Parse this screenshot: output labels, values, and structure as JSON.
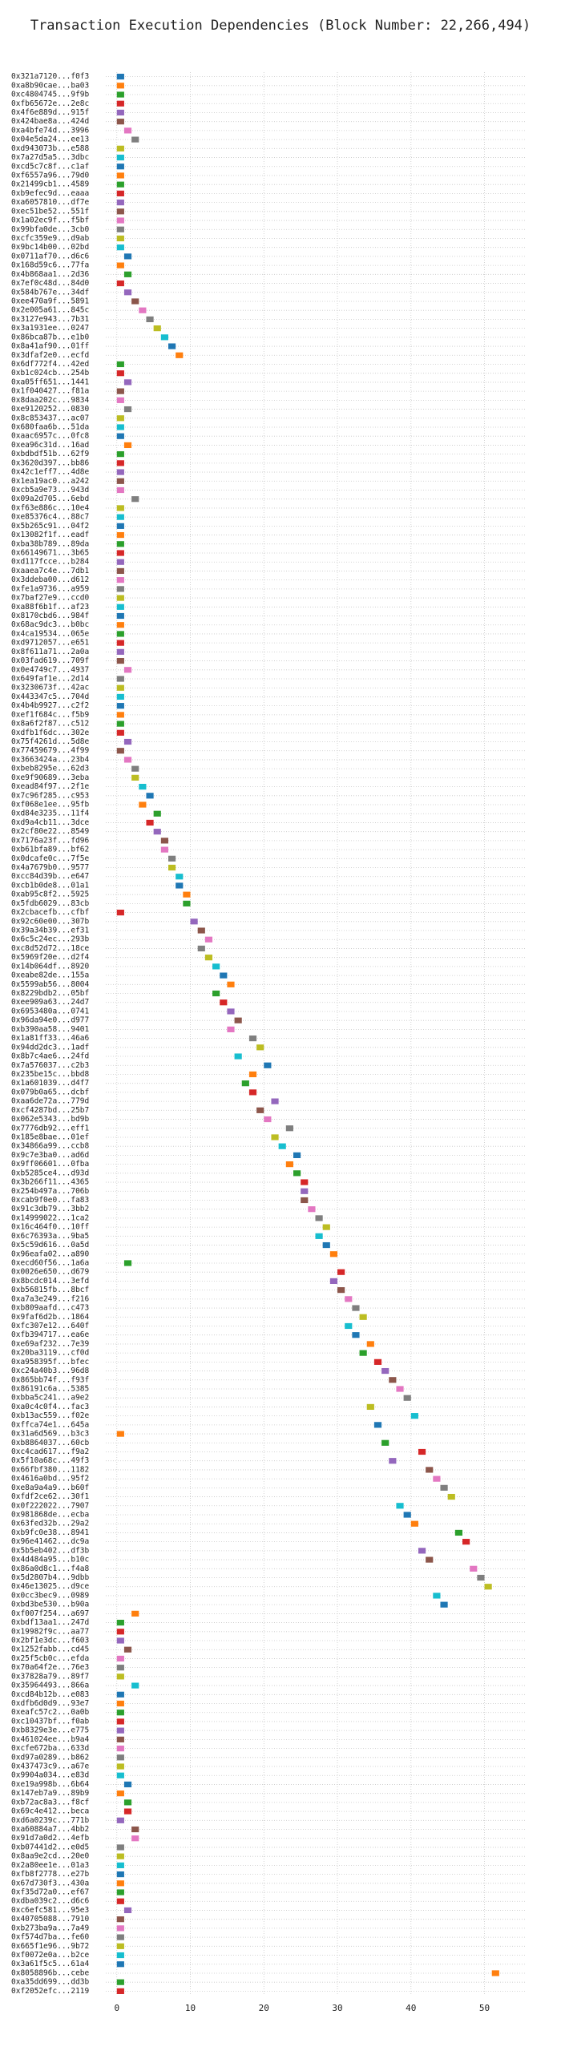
{
  "chart_data": {
    "type": "timeline",
    "title": "Transaction Execution Dependencies (Block Number: 22,266,494)",
    "categories": [
      "0x321a7120...f0f3",
      "0xa8b90cae...ba03",
      "0xc4804745...9f9b",
      "0xfb65672e...2e8c",
      "0x4f6e889d...915f",
      "0x424bae8a...424d",
      "0xa4bfe74d...3996",
      "0x04e5da24...ee13",
      "0xd943073b...e588",
      "0x7a27d5a5...3dbc",
      "0xcd5c7c8f...c1af",
      "0xf6557a96...79d0",
      "0x21499cb1...4589",
      "0xb9efec9d...eaaa",
      "0xa6057810...df7e",
      "0xec51be52...551f",
      "0x1a02ec9f...f5bf",
      "0x99bfa0de...3cb0",
      "0xcfc359e9...d9ab",
      "0x9bc14b00...02bd",
      "0x0711af70...d6c6",
      "0x168d59c6...77fa",
      "0x4b868aa1...2d36",
      "0x7ef0c48d...84d0",
      "0x584b767e...34df",
      "0xee470a9f...5891",
      "0x2e005a61...845c",
      "0x3127e943...7b31",
      "0x3a1931ee...0247",
      "0x86bca87b...e1b0",
      "0x8a41af90...01ff",
      "0x3dfaf2e0...ecfd",
      "0x6df772f4...42ed",
      "0xb1c024cb...254b",
      "0xa05ff651...1441",
      "0x1f040427...f81a",
      "0x8daa202c...9834",
      "0xe9120252...0830",
      "0x8c853437...ac07",
      "0x680faa6b...51da",
      "0xaac6957c...0fc8",
      "0xea96c31d...16ad",
      "0xbdbdf51b...62f9",
      "0x3620d397...bb86",
      "0x42c1eff7...4d8e",
      "0x1ea19ac0...a242",
      "0xcb5a9e73...943d",
      "0x09a2d705...6ebd",
      "0xf63e886c...10e4",
      "0xe85376c4...88c7",
      "0x5b265c91...04f2",
      "0x13082f1f...eadf",
      "0xba38b789...89da",
      "0x66149671...3b65",
      "0xd117fcce...b284",
      "0xaaea7c4e...7db1",
      "0x3ddeba00...d612",
      "0xfe1a9736...a959",
      "0x7baf27e9...ccd0",
      "0xa88f6b1f...af23",
      "0x8170cbd6...984f",
      "0x68ac9dc3...b0bc",
      "0x4ca19534...065e",
      "0xd9712057...e651",
      "0x8f611a71...2a0a",
      "0x03fad619...709f",
      "0x0e4749c7...4937",
      "0x649faf1e...2d14",
      "0x3230673f...42ac",
      "0x443347c5...704d",
      "0x4b4b9927...c2f2",
      "0xef1f684c...f5b9",
      "0x8a6f2f87...c512",
      "0xdfb1f6dc...302e",
      "0x75f4261d...5d8e",
      "0x77459679...4f99",
      "0x3663424a...23b4",
      "0xbeb8295e...62d3",
      "0xe9f90689...3eba",
      "0xead84f97...2f1e",
      "0x7c96f285...c953",
      "0xf068e1ee...95fb",
      "0xd84e3235...11f4",
      "0xd9a4cb11...3dce",
      "0x2cf80e22...8549",
      "0x7176a23f...fd96",
      "0xb61bfa89...bf62",
      "0x0dcafe0c...7f5e",
      "0x4a7679b0...9577",
      "0xcc84d39b...e647",
      "0xcb1b0de8...01a1",
      "0xab95c8f2...5925",
      "0x5fdb6029...83cb",
      "0x2cbacefb...cfbf",
      "0x92c60e00...307b",
      "0x39a34b39...ef31",
      "0x6c5c24ec...293b",
      "0xc8d52d72...18ce",
      "0x5969f20e...d2f4",
      "0x14b064df...8920",
      "0xeabe82de...155a",
      "0x5599ab56...8004",
      "0x8229bdb2...05bf",
      "0xee909a63...24d7",
      "0x6953480a...0741",
      "0x96da94e0...d977",
      "0xb390aa58...9401",
      "0x1a81ff33...46a6",
      "0x94dd2dc3...1adf",
      "0x8b7c4ae6...24fd",
      "0x7a576037...c2b3",
      "0x235be15c...bbd8",
      "0x1a601039...d4f7",
      "0x079b0a65...dcbf",
      "0xaa6de72a...779d",
      "0xcf4287bd...25b7",
      "0x062e5343...bd9b",
      "0x7776db92...eff1",
      "0x185e8bae...01ef",
      "0x34866a99...ccb8",
      "0x9c7e3ba0...ad6d",
      "0x9ff06601...0fba",
      "0xb5285ce4...d93d",
      "0x3b266f11...4365",
      "0x254b497a...706b",
      "0xcab9f0e0...fa83",
      "0x91c3db79...3bb2",
      "0x14999022...1ca2",
      "0x16c464f0...10ff",
      "0x6c76393a...9ba5",
      "0x5c59d616...0a5d",
      "0x96eafa02...a890",
      "0xecd60f56...1a6a",
      "0x0026e650...d679",
      "0x8bcdc014...3efd",
      "0xb56815fb...8bcf",
      "0xa7a3e249...f216",
      "0xb809aafd...c473",
      "0x9faf6d2b...1864",
      "0xfc307e12...640f",
      "0xfb394717...ea6e",
      "0xe69af232...7e39",
      "0x20ba3119...cf0d",
      "0xa958395f...bfec",
      "0xc24a40b3...96d8",
      "0x865bb74f...f93f",
      "0x86191c6a...5385",
      "0xbba5c241...a9e2",
      "0xa0c4c0f4...fac3",
      "0xb13ac559...f02e",
      "0xffca74e1...645a",
      "0x31a6d569...b3c3",
      "0xb8864037...60cb",
      "0xc4cad617...f9a2",
      "0x5f10a68c...49f3",
      "0x66fbf380...1182",
      "0x4616a0bd...95f2",
      "0xe8a9a4a9...b60f",
      "0xfdf2ce62...30f1",
      "0x0f222022...7907",
      "0x981868de...ecba",
      "0x63fed32b...29a2",
      "0xb9fc0e38...8941",
      "0x96e41462...dc9a",
      "0x5b5eb402...df3b",
      "0x4d484a95...b10c",
      "0x86a0d8c1...f4a8",
      "0x5d2807b4...9dbb",
      "0x46e13025...d9ce",
      "0x0cc3bec9...0989",
      "0xbd3be530...b90a",
      "0xf007f254...a697",
      "0xbdf13aa1...247d",
      "0x19982f9c...aa77",
      "0x2bf1e3dc...f603",
      "0x1252fabb...cd45",
      "0x25f5cb0c...efda",
      "0x70a64f2e...76e3",
      "0x37828a79...89f7",
      "0x35964493...866a",
      "0xcd84b12b...e083",
      "0xdfb6d0d9...93e7",
      "0xeafc57c2...0a0b",
      "0xc10437bf...f0ab",
      "0xb8329e3e...e775",
      "0x461024ee...b9a4",
      "0xcfe672ba...633d",
      "0xd97a0289...b862",
      "0x437473c9...a67e",
      "0x9904a034...e83d",
      "0xe19a998b...6b64",
      "0x147eb7a9...89b9",
      "0xb72ac8a3...f8cf",
      "0x69c4e412...beca",
      "0xd6a0239c...771b",
      "0xa60884a7...4bb2",
      "0x91d7a0d2...4efb",
      "0xb07441d2...e0d5",
      "0x8aa9e2cd...20e0",
      "0x2a80ee1e...01a3",
      "0xfb8f2778...e27b",
      "0x67d730f3...430a",
      "0xf35d72a0...ef67",
      "0xdba039c2...d6c6",
      "0xc6efc581...95e3",
      "0x40705088...7910",
      "0xb273ba9a...7a49",
      "0xf574d7ba...fe60",
      "0x665f1e96...9b72",
      "0xf0072e0a...b2ce",
      "0x3a61f5c5...61a4",
      "0x8058896b...cebe",
      "0xa35dd699...dd3b",
      "0xf2052efc...2119"
    ],
    "values": [
      0,
      0,
      0,
      0,
      0,
      0,
      1,
      2,
      0,
      0,
      0,
      0,
      0,
      0,
      0,
      0,
      0,
      0,
      0,
      0,
      1,
      0,
      1,
      0,
      1,
      2,
      3,
      4,
      5,
      6,
      7,
      8,
      0,
      0,
      1,
      0,
      0,
      1,
      0,
      0,
      0,
      1,
      0,
      0,
      0,
      0,
      0,
      2,
      0,
      0,
      0,
      0,
      0,
      0,
      0,
      0,
      0,
      0,
      0,
      0,
      0,
      0,
      0,
      0,
      0,
      0,
      1,
      0,
      0,
      0,
      0,
      0,
      0,
      0,
      1,
      0,
      1,
      2,
      2,
      3,
      4,
      3,
      5,
      4,
      5,
      6,
      6,
      7,
      7,
      8,
      8,
      9,
      9,
      0,
      10,
      11,
      12,
      11,
      12,
      13,
      14,
      15,
      13,
      14,
      15,
      16,
      15,
      18,
      19,
      16,
      20,
      18,
      17,
      18,
      21,
      19,
      20,
      23,
      21,
      22,
      24,
      23,
      24,
      25,
      25,
      25,
      26,
      27,
      28,
      27,
      28,
      29,
      1,
      30,
      29,
      30,
      31,
      32,
      33,
      31,
      32,
      34,
      33,
      35,
      36,
      37,
      38,
      39,
      34,
      40,
      35,
      0,
      36,
      41,
      37,
      42,
      43,
      44,
      45,
      38,
      39,
      40,
      46,
      47,
      41,
      42,
      48,
      49,
      50,
      43,
      44,
      2,
      0,
      0,
      0,
      1,
      0,
      0,
      0,
      2,
      0,
      0,
      0,
      0,
      0,
      0,
      0,
      0,
      0,
      0,
      1,
      0,
      1,
      1,
      0,
      2,
      2,
      0,
      0,
      0,
      0,
      0,
      0,
      0,
      1,
      0,
      0,
      0,
      0,
      0,
      0,
      51,
      0,
      0
    ],
    "colors": [
      "#1f77b4",
      "#ff7f0e",
      "#2ca02c",
      "#d62728",
      "#9467bd",
      "#8c564b",
      "#e377c2",
      "#7f7f7f",
      "#bcbd22",
      "#17becf"
    ],
    "xlim": [
      -1.5,
      55.5
    ],
    "xticks": [
      0,
      10,
      20,
      30,
      40,
      50
    ],
    "grid": true
  }
}
